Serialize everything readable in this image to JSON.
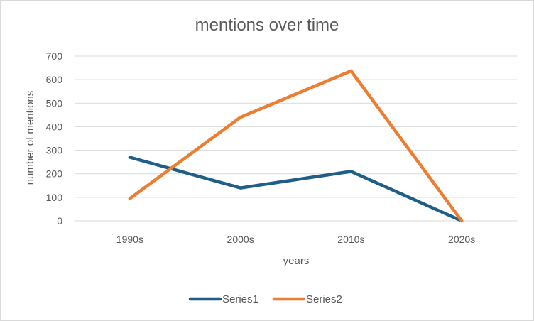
{
  "chart_data": {
    "type": "line",
    "title": "mentions over time",
    "xlabel": "years",
    "ylabel": "number of mentions",
    "categories": [
      "1990s",
      "2000s",
      "2010s",
      "2020s"
    ],
    "ylim": [
      0,
      700
    ],
    "yticks": [
      0,
      100,
      200,
      300,
      400,
      500,
      600,
      700
    ],
    "grid": true,
    "legend_position": "bottom",
    "series": [
      {
        "name": "Series1",
        "values": [
          270,
          140,
          210,
          0
        ],
        "color": "#1f5f87"
      },
      {
        "name": "Series2",
        "values": [
          95,
          440,
          637,
          0
        ],
        "color": "#ed7d31"
      }
    ]
  }
}
